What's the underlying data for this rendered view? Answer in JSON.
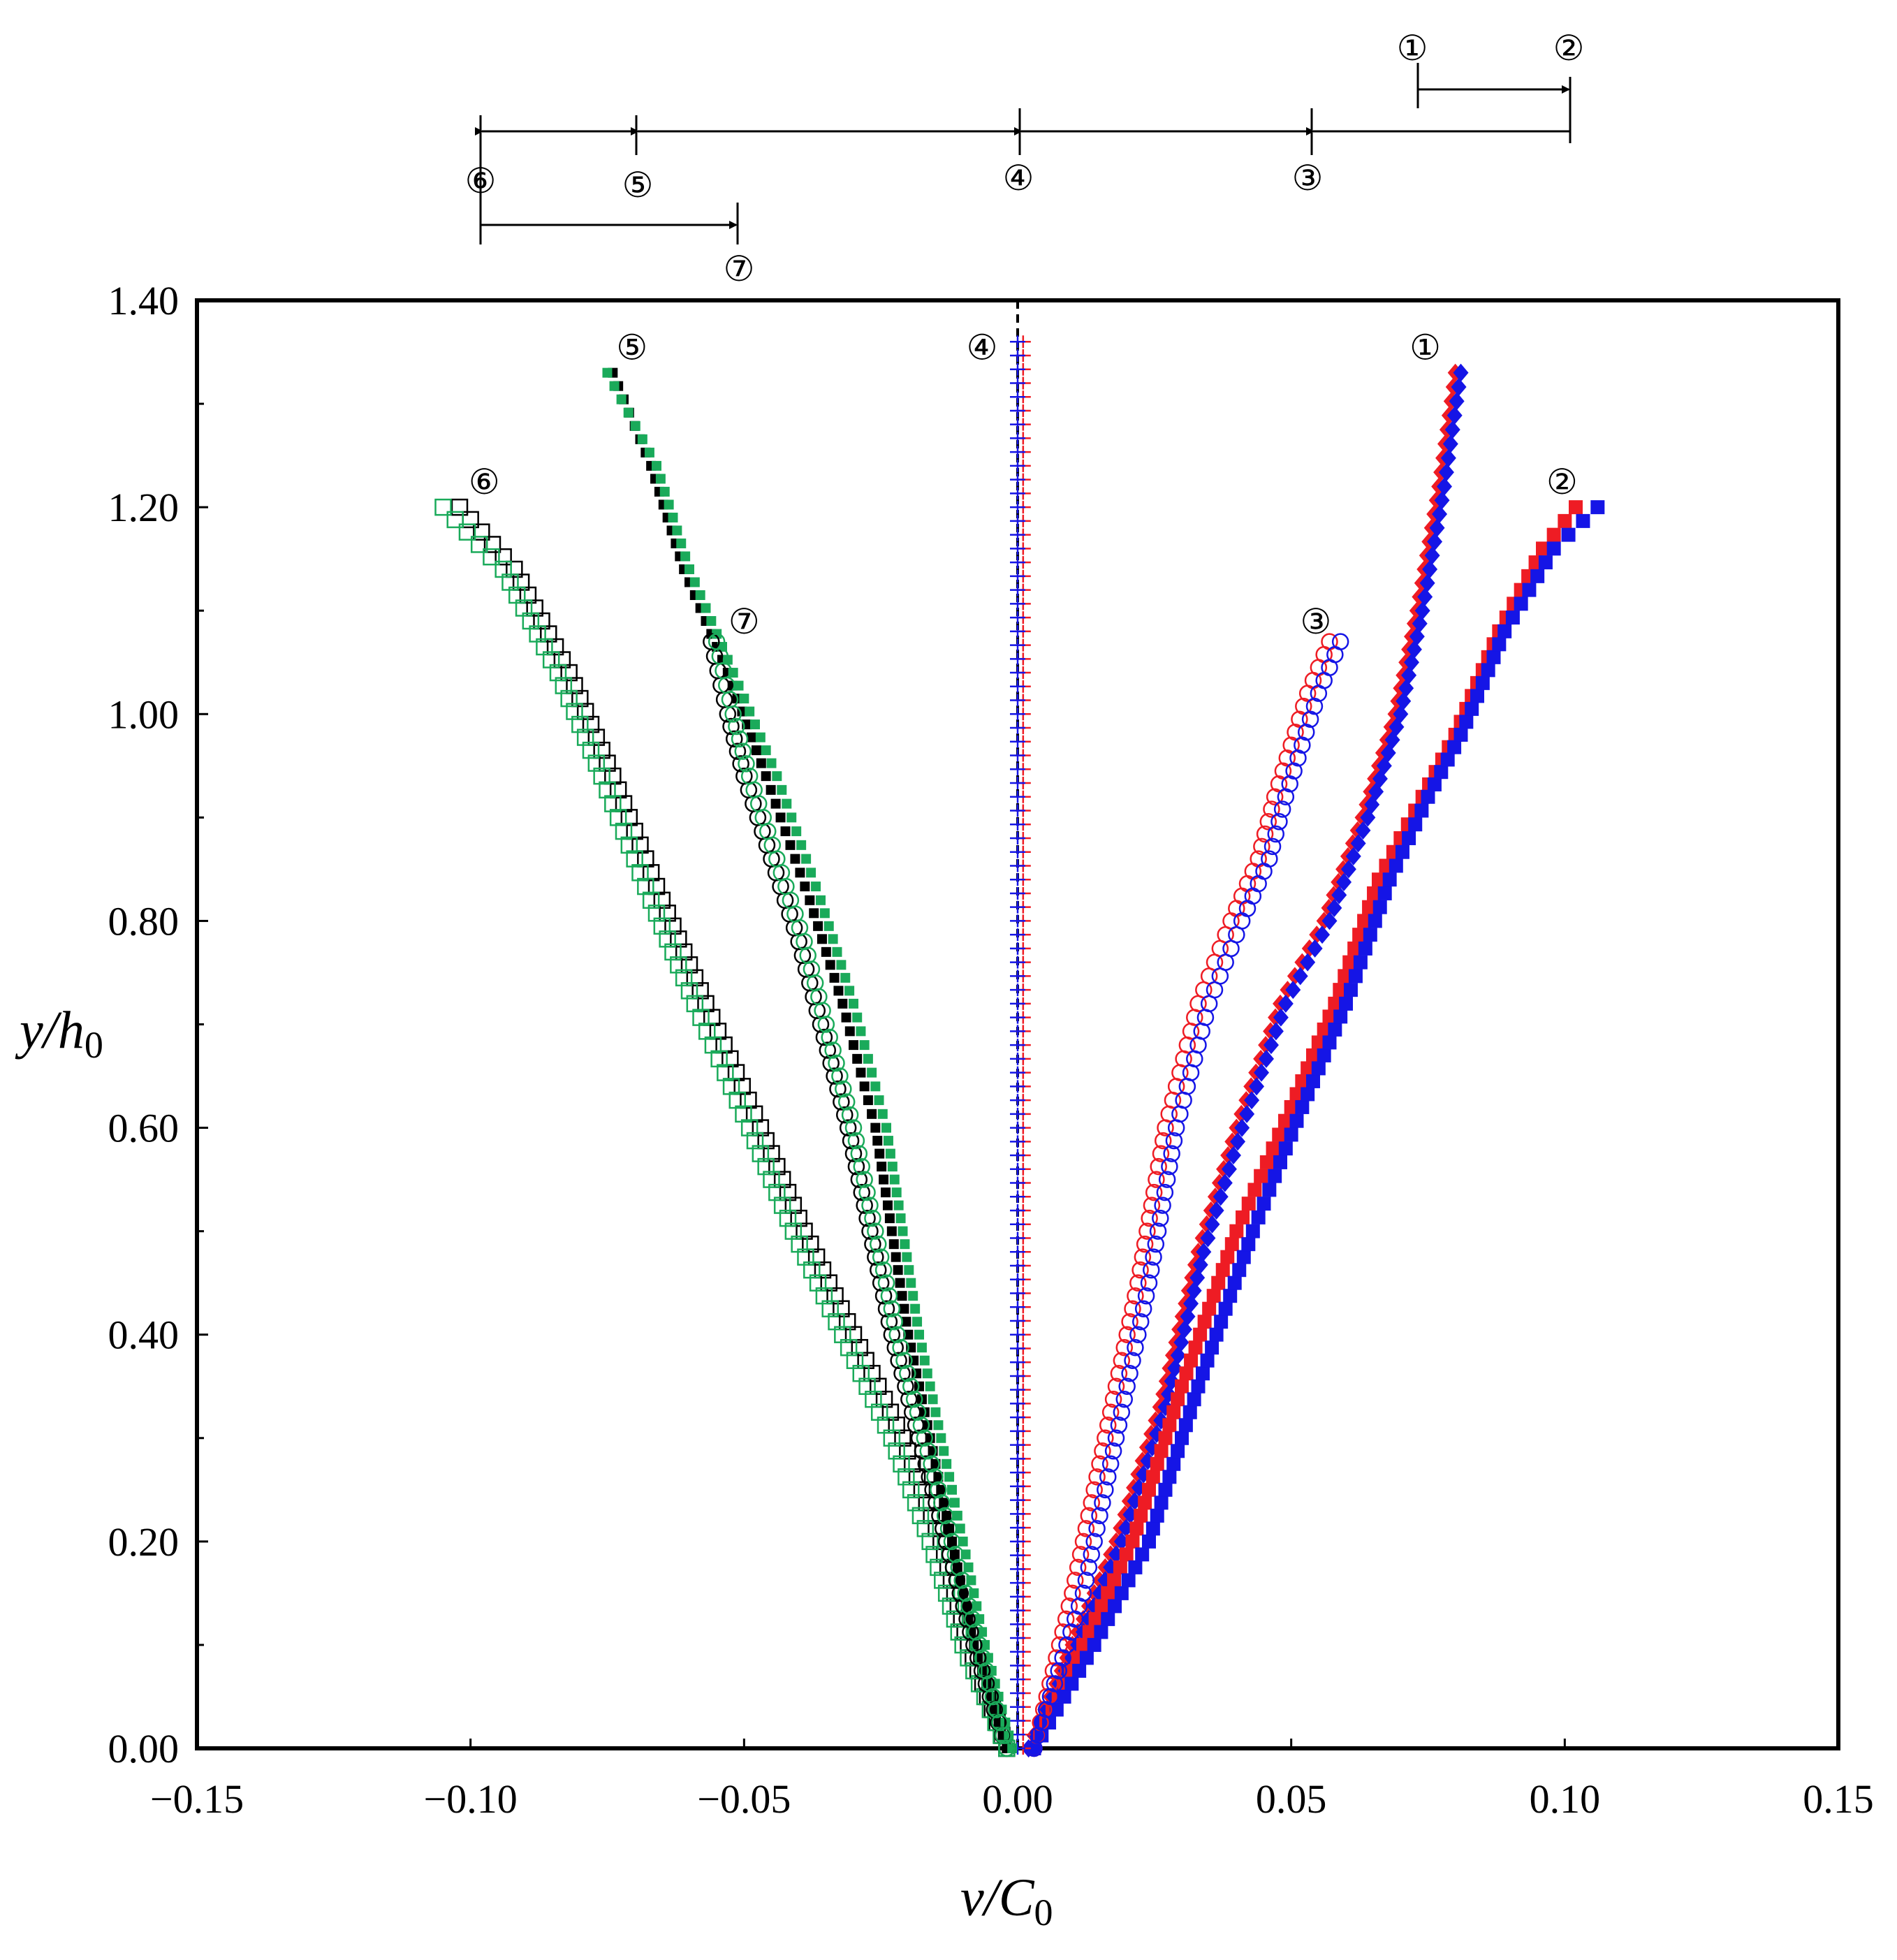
{
  "chart_data": {
    "type": "scatter",
    "title": "",
    "xlabel": {
      "base": "v/C",
      "sub": "0"
    },
    "ylabel": {
      "base": "y/h",
      "sub": "0"
    },
    "xlim": [
      -0.15,
      0.15
    ],
    "ylim": [
      0,
      1.4
    ],
    "x_ticks": [
      "−0.15",
      "−0.10",
      "−0.05",
      "0.00",
      "0.05",
      "0.10",
      "0.15"
    ],
    "x_tick_values": [
      -0.15,
      -0.1,
      -0.05,
      0.0,
      0.05,
      0.1,
      0.15
    ],
    "y_ticks": [
      "0.00",
      "0.20",
      "0.40",
      "0.60",
      "0.80",
      "1.00",
      "1.20",
      "1.40"
    ],
    "y_tick_values": [
      0.0,
      0.2,
      0.4,
      0.6,
      0.8,
      1.0,
      1.2,
      1.4
    ],
    "y_minor_tick_values": [
      0.1,
      0.3,
      0.5,
      0.7,
      0.9,
      1.1,
      1.3
    ],
    "grid": false,
    "zero_reference_line": {
      "x": 0.0,
      "style": "dashed"
    },
    "colors": {
      "red": "#ee1c24",
      "blue": "#1515e6",
      "black": "#000000",
      "green": "#1aaa5a"
    },
    "series": [
      {
        "label": "①",
        "marker": "diamond-filled",
        "color": "#ee1c24",
        "points": [
          [
            0.002,
            0.0
          ],
          [
            0.01,
            0.1
          ],
          [
            0.018,
            0.2
          ],
          [
            0.026,
            0.33
          ],
          [
            0.033,
            0.48
          ],
          [
            0.04,
            0.6
          ],
          [
            0.048,
            0.72
          ],
          [
            0.056,
            0.8
          ],
          [
            0.063,
            0.9
          ],
          [
            0.069,
            1.0
          ],
          [
            0.073,
            1.1
          ],
          [
            0.077,
            1.22
          ],
          [
            0.08,
            1.33
          ]
        ]
      },
      {
        "label": "①",
        "marker": "diamond-filled",
        "color": "#1515e6",
        "points": [
          [
            0.002,
            0.0
          ],
          [
            0.011,
            0.1
          ],
          [
            0.019,
            0.2
          ],
          [
            0.027,
            0.33
          ],
          [
            0.034,
            0.48
          ],
          [
            0.041,
            0.6
          ],
          [
            0.049,
            0.72
          ],
          [
            0.057,
            0.8
          ],
          [
            0.064,
            0.9
          ],
          [
            0.07,
            1.0
          ],
          [
            0.074,
            1.1
          ],
          [
            0.078,
            1.22
          ],
          [
            0.081,
            1.33
          ]
        ]
      },
      {
        "label": "②",
        "marker": "square-filled",
        "color": "#ee1c24",
        "points": [
          [
            0.003,
            0.0
          ],
          [
            0.012,
            0.1
          ],
          [
            0.021,
            0.2
          ],
          [
            0.03,
            0.35
          ],
          [
            0.04,
            0.5
          ],
          [
            0.05,
            0.62
          ],
          [
            0.058,
            0.72
          ],
          [
            0.066,
            0.84
          ],
          [
            0.074,
            0.92
          ],
          [
            0.08,
            0.98
          ],
          [
            0.088,
            1.08
          ],
          [
            0.096,
            1.16
          ],
          [
            0.102,
            1.2
          ]
        ]
      },
      {
        "label": "②",
        "marker": "square-filled",
        "color": "#1515e6",
        "points": [
          [
            0.003,
            0.0
          ],
          [
            0.014,
            0.1
          ],
          [
            0.024,
            0.2
          ],
          [
            0.033,
            0.35
          ],
          [
            0.043,
            0.5
          ],
          [
            0.052,
            0.62
          ],
          [
            0.06,
            0.72
          ],
          [
            0.068,
            0.84
          ],
          [
            0.075,
            0.92
          ],
          [
            0.081,
            0.98
          ],
          [
            0.089,
            1.08
          ],
          [
            0.098,
            1.16
          ],
          [
            0.106,
            1.2
          ]
        ]
      },
      {
        "label": "③",
        "marker": "circle-open",
        "color": "#ee1c24",
        "points": [
          [
            0.003,
            0.0
          ],
          [
            0.01,
            0.15
          ],
          [
            0.016,
            0.3
          ],
          [
            0.022,
            0.45
          ],
          [
            0.027,
            0.6
          ],
          [
            0.033,
            0.72
          ],
          [
            0.039,
            0.8
          ],
          [
            0.044,
            0.86
          ],
          [
            0.047,
            0.92
          ],
          [
            0.05,
            0.97
          ],
          [
            0.053,
            1.02
          ],
          [
            0.057,
            1.07
          ]
        ]
      },
      {
        "label": "③",
        "marker": "circle-open",
        "color": "#1515e6",
        "points": [
          [
            0.003,
            0.0
          ],
          [
            0.012,
            0.15
          ],
          [
            0.018,
            0.3
          ],
          [
            0.024,
            0.45
          ],
          [
            0.029,
            0.6
          ],
          [
            0.035,
            0.72
          ],
          [
            0.041,
            0.8
          ],
          [
            0.046,
            0.86
          ],
          [
            0.049,
            0.92
          ],
          [
            0.052,
            0.97
          ],
          [
            0.055,
            1.02
          ],
          [
            0.059,
            1.07
          ]
        ]
      },
      {
        "label": "④",
        "marker": "plus",
        "color": "#ee1c24",
        "points": [
          [
            0.001,
            0.0
          ],
          [
            0.001,
            0.2
          ],
          [
            0.001,
            0.4
          ],
          [
            0.001,
            0.6
          ],
          [
            0.001,
            0.8
          ],
          [
            0.001,
            1.0
          ],
          [
            0.001,
            1.2
          ],
          [
            0.001,
            1.36
          ]
        ]
      },
      {
        "label": "④",
        "marker": "plus",
        "color": "#1515e6",
        "points": [
          [
            0.0,
            0.0
          ],
          [
            0.0,
            0.2
          ],
          [
            0.0,
            0.4
          ],
          [
            0.0,
            0.6
          ],
          [
            0.0,
            0.8
          ],
          [
            0.0,
            1.0
          ],
          [
            0.0,
            1.2
          ],
          [
            0.0,
            1.36
          ]
        ]
      },
      {
        "label": "⑤",
        "marker": "square-small-filled",
        "color": "#000000",
        "points": [
          [
            -0.002,
            0.0
          ],
          [
            -0.008,
            0.1
          ],
          [
            -0.012,
            0.2
          ],
          [
            -0.016,
            0.3
          ],
          [
            -0.02,
            0.4
          ],
          [
            -0.023,
            0.5
          ],
          [
            -0.026,
            0.6
          ],
          [
            -0.032,
            0.72
          ],
          [
            -0.038,
            0.82
          ],
          [
            -0.046,
            0.94
          ],
          [
            -0.053,
            1.04
          ],
          [
            -0.061,
            1.14
          ],
          [
            -0.067,
            1.24
          ],
          [
            -0.074,
            1.33
          ]
        ]
      },
      {
        "label": "⑤",
        "marker": "square-small-filled",
        "color": "#1aaa5a",
        "points": [
          [
            -0.001,
            0.0
          ],
          [
            -0.006,
            0.1
          ],
          [
            -0.01,
            0.2
          ],
          [
            -0.014,
            0.3
          ],
          [
            -0.018,
            0.4
          ],
          [
            -0.021,
            0.5
          ],
          [
            -0.024,
            0.6
          ],
          [
            -0.03,
            0.72
          ],
          [
            -0.036,
            0.82
          ],
          [
            -0.044,
            0.94
          ],
          [
            -0.052,
            1.04
          ],
          [
            -0.06,
            1.14
          ],
          [
            -0.066,
            1.24
          ],
          [
            -0.075,
            1.33
          ]
        ]
      },
      {
        "label": "⑥",
        "marker": "square-open",
        "color": "#000000",
        "points": [
          [
            -0.002,
            0.0
          ],
          [
            -0.009,
            0.1
          ],
          [
            -0.014,
            0.2
          ],
          [
            -0.021,
            0.3
          ],
          [
            -0.03,
            0.4
          ],
          [
            -0.039,
            0.5
          ],
          [
            -0.047,
            0.6
          ],
          [
            -0.057,
            0.72
          ],
          [
            -0.065,
            0.82
          ],
          [
            -0.074,
            0.94
          ],
          [
            -0.082,
            1.04
          ],
          [
            -0.092,
            1.14
          ],
          [
            -0.102,
            1.2
          ]
        ]
      },
      {
        "label": "⑥",
        "marker": "square-open",
        "color": "#1aaa5a",
        "points": [
          [
            -0.002,
            0.0
          ],
          [
            -0.01,
            0.1
          ],
          [
            -0.016,
            0.2
          ],
          [
            -0.023,
            0.3
          ],
          [
            -0.032,
            0.4
          ],
          [
            -0.041,
            0.5
          ],
          [
            -0.049,
            0.6
          ],
          [
            -0.059,
            0.72
          ],
          [
            -0.067,
            0.82
          ],
          [
            -0.076,
            0.94
          ],
          [
            -0.084,
            1.04
          ],
          [
            -0.094,
            1.14
          ],
          [
            -0.105,
            1.2
          ]
        ]
      },
      {
        "label": "⑦",
        "marker": "circle-open",
        "color": "#000000",
        "points": [
          [
            -0.002,
            0.0
          ],
          [
            -0.008,
            0.1
          ],
          [
            -0.013,
            0.2
          ],
          [
            -0.018,
            0.3
          ],
          [
            -0.023,
            0.4
          ],
          [
            -0.027,
            0.5
          ],
          [
            -0.031,
            0.6
          ],
          [
            -0.036,
            0.7
          ],
          [
            -0.04,
            0.78
          ],
          [
            -0.045,
            0.86
          ],
          [
            -0.05,
            0.94
          ],
          [
            -0.053,
            1.0
          ],
          [
            -0.056,
            1.07
          ]
        ]
      },
      {
        "label": "⑦",
        "marker": "circle-open",
        "color": "#1aaa5a",
        "points": [
          [
            -0.002,
            0.0
          ],
          [
            -0.007,
            0.1
          ],
          [
            -0.012,
            0.2
          ],
          [
            -0.017,
            0.3
          ],
          [
            -0.022,
            0.4
          ],
          [
            -0.026,
            0.5
          ],
          [
            -0.03,
            0.6
          ],
          [
            -0.035,
            0.7
          ],
          [
            -0.039,
            0.78
          ],
          [
            -0.044,
            0.86
          ],
          [
            -0.049,
            0.94
          ],
          [
            -0.052,
            1.0
          ],
          [
            -0.055,
            1.07
          ]
        ]
      }
    ],
    "annotations": [
      {
        "text": "①",
        "x": 0.0745,
        "y": 1.355
      },
      {
        "text": "②",
        "x": 0.0995,
        "y": 1.225
      },
      {
        "text": "③",
        "x": 0.0545,
        "y": 1.09
      },
      {
        "text": "④",
        "x": -0.0065,
        "y": 1.355
      },
      {
        "text": "⑤",
        "x": -0.0705,
        "y": 1.355
      },
      {
        "text": "⑥",
        "x": -0.0975,
        "y": 1.225
      },
      {
        "text": "⑦",
        "x": -0.05,
        "y": 1.09
      }
    ],
    "position_diagram": {
      "labels": [
        "①",
        "②",
        "③",
        "④",
        "⑤",
        "⑥",
        "⑦"
      ]
    }
  }
}
